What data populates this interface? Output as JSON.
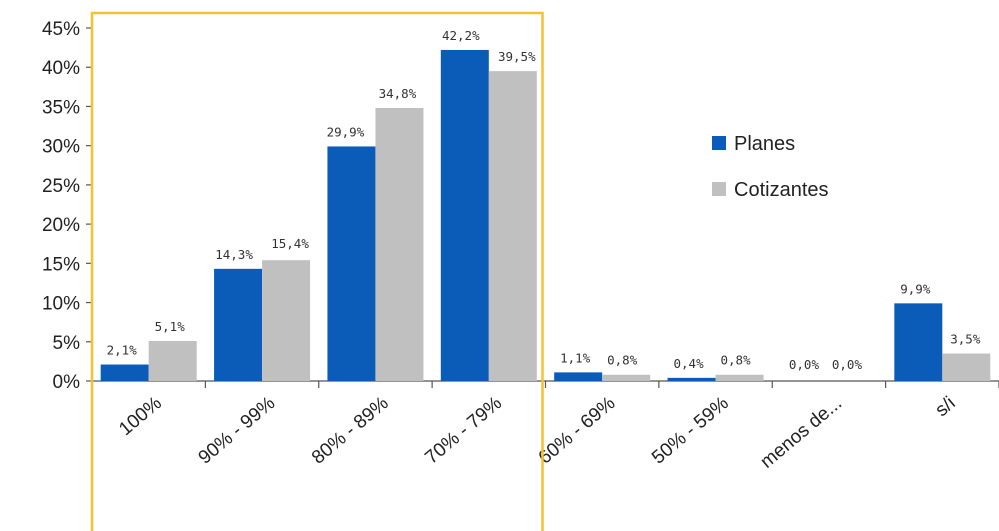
{
  "chart_data": {
    "type": "bar",
    "categories": [
      "100%",
      "90% - 99%",
      "80% - 89%",
      "70% - 79%",
      "60% - 69%",
      "50% - 59%",
      "menos de...",
      "s/i"
    ],
    "series": [
      {
        "name": "Planes",
        "values": [
          2.1,
          14.3,
          29.9,
          42.2,
          1.1,
          0.4,
          0.0,
          9.9
        ],
        "labels": [
          "2,1%",
          "14,3%",
          "29,9%",
          "42,2%",
          "1,1%",
          "0,4%",
          "0,0%",
          "9,9%"
        ],
        "color": "#0b5cb8"
      },
      {
        "name": "Cotizantes",
        "values": [
          5.1,
          15.4,
          34.8,
          39.5,
          0.8,
          0.8,
          0.0,
          3.5
        ],
        "labels": [
          "5,1%",
          "15,4%",
          "34,8%",
          "39,5%",
          "0,8%",
          "0,8%",
          "0,0%",
          "3,5%"
        ],
        "color": "#c0c0c0"
      }
    ],
    "ylim": [
      0,
      45
    ],
    "yticks": [
      0,
      5,
      10,
      15,
      20,
      25,
      30,
      35,
      40,
      45
    ],
    "ytick_labels": [
      "0%",
      "5%",
      "10%",
      "15%",
      "20%",
      "25%",
      "30%",
      "35%",
      "40%",
      "45%"
    ],
    "grid": false,
    "legend_position": "right",
    "highlight": {
      "categories": [
        "100%",
        "90% - 99%",
        "80% - 89%",
        "70% - 79%"
      ],
      "color": "#f2c230"
    }
  }
}
